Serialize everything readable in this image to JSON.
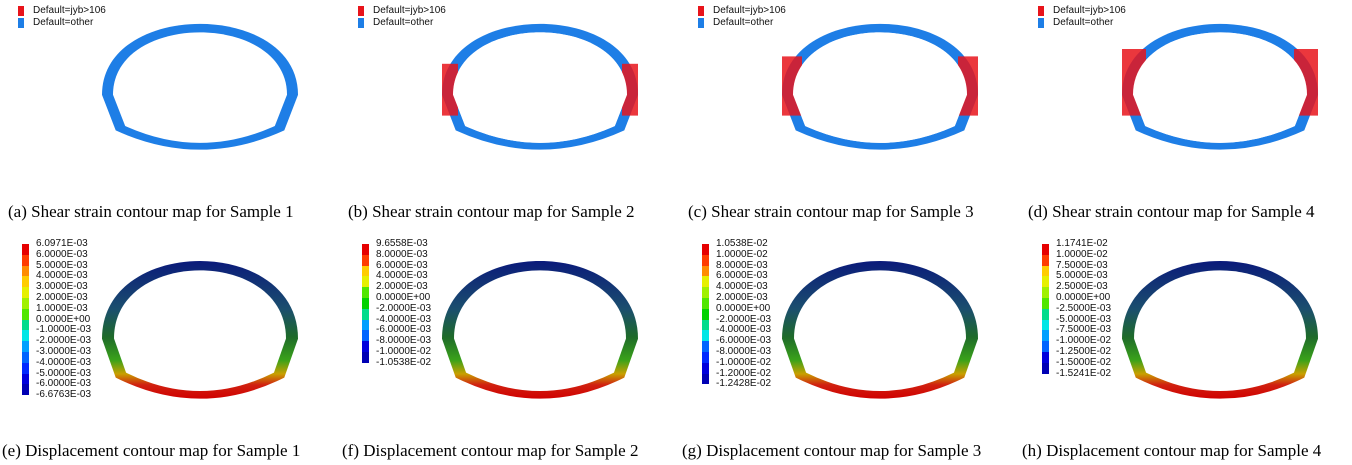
{
  "shear_legend": {
    "items": [
      {
        "label": "Default=jyb>106",
        "color": "#e8141b"
      },
      {
        "label": "Default=other",
        "color": "#1e7ee6"
      }
    ]
  },
  "shear_panels": [
    {
      "caption": "(a) Shear strain contour map for Sample 1",
      "level": 0
    },
    {
      "caption": "(b) Shear strain contour map for Sample 2",
      "level": 1
    },
    {
      "caption": "(c) Shear strain contour map for Sample 3",
      "level": 2
    },
    {
      "caption": "(d) Shear strain contour map for Sample 4",
      "level": 3
    }
  ],
  "displacement_panels": [
    {
      "caption": "(e) Displacement contour map for Sample 1",
      "scale": [
        "6.0971E-03",
        "6.0000E-03",
        "5.0000E-03",
        "4.0000E-03",
        "3.0000E-03",
        "2.0000E-03",
        "1.0000E-03",
        "0.0000E+00",
        "-1.0000E-03",
        "-2.0000E-03",
        "-3.0000E-03",
        "-4.0000E-03",
        "-5.0000E-03",
        "-6.0000E-03",
        "-6.6763E-03"
      ]
    },
    {
      "caption": "(f) Displacement contour map for Sample 2",
      "scale": [
        "9.6558E-03",
        "8.0000E-03",
        "6.0000E-03",
        "4.0000E-03",
        "2.0000E-03",
        "0.0000E+00",
        "-2.0000E-03",
        "-4.0000E-03",
        "-6.0000E-03",
        "-8.0000E-03",
        "-1.0000E-02",
        "-1.0538E-02"
      ]
    },
    {
      "caption": "(g) Displacement contour map for Sample 3",
      "scale": [
        "1.0538E-02",
        "1.0000E-02",
        "8.0000E-03",
        "6.0000E-03",
        "4.0000E-03",
        "2.0000E-03",
        "0.0000E+00",
        "-2.0000E-03",
        "-4.0000E-03",
        "-6.0000E-03",
        "-8.0000E-03",
        "-1.0000E-02",
        "-1.2000E-02",
        "-1.2428E-02"
      ]
    },
    {
      "caption": "(h) Displacement contour map for Sample 4",
      "scale": [
        "1.1741E-02",
        "1.0000E-02",
        "7.5000E-03",
        "5.0000E-03",
        "2.5000E-03",
        "0.0000E+00",
        "-2.5000E-03",
        "-5.0000E-03",
        "-7.5000E-03",
        "-1.0000E-02",
        "-1.2500E-02",
        "-1.5000E-02",
        "-1.5241E-02"
      ]
    }
  ],
  "colors": {
    "shear_red": "#e8141b",
    "shear_blue": "#1e7ee6",
    "dark_navy": "#0f2f55",
    "dark_red": "#6a0b0b",
    "scale": [
      "#e60000",
      "#ff3c00",
      "#ff8c00",
      "#ffcc00",
      "#e6f000",
      "#a0f000",
      "#50e600",
      "#00d200",
      "#00dc8c",
      "#00e6e6",
      "#00a0ff",
      "#0064ff",
      "#0028ff",
      "#0000dc",
      "#0000b4"
    ]
  }
}
